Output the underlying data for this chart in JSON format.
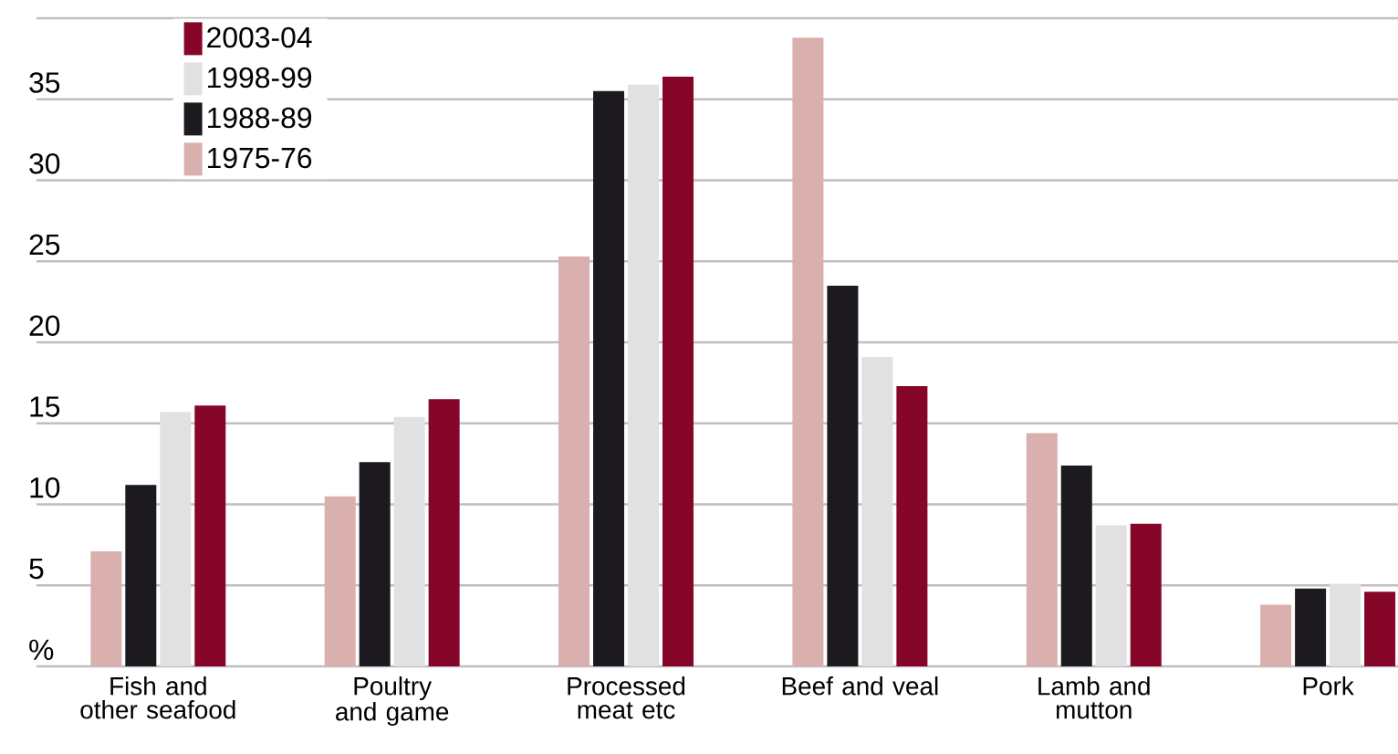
{
  "chart_data": {
    "type": "bar",
    "categories": [
      "Fish and other seafood",
      "Poultry and game",
      "Processed meat etc",
      "Beef and veal",
      "Lamb and mutton",
      "Pork"
    ],
    "series": [
      {
        "name": "1975-76",
        "color": "#d9b0ad",
        "values": [
          7.1,
          10.5,
          25.3,
          38.8,
          14.4,
          3.8
        ]
      },
      {
        "name": "1988-89",
        "color": "#1c1a1f",
        "values": [
          11.2,
          12.6,
          35.5,
          23.5,
          12.4,
          4.8
        ]
      },
      {
        "name": "1998-99",
        "color": "#e1e1e1",
        "values": [
          15.7,
          15.4,
          35.9,
          19.1,
          8.7,
          5.1
        ]
      },
      {
        "name": "2003-04",
        "color": "#850628",
        "values": [
          16.1,
          16.5,
          36.4,
          17.3,
          8.8,
          4.6
        ]
      }
    ],
    "ylim": [
      0,
      40
    ],
    "yticks": [
      {
        "value": 0,
        "label": "%"
      },
      5,
      10,
      15,
      20,
      25,
      30,
      35,
      {
        "value": 40,
        "label": null
      }
    ],
    "grid": "y",
    "legend": "top left"
  }
}
